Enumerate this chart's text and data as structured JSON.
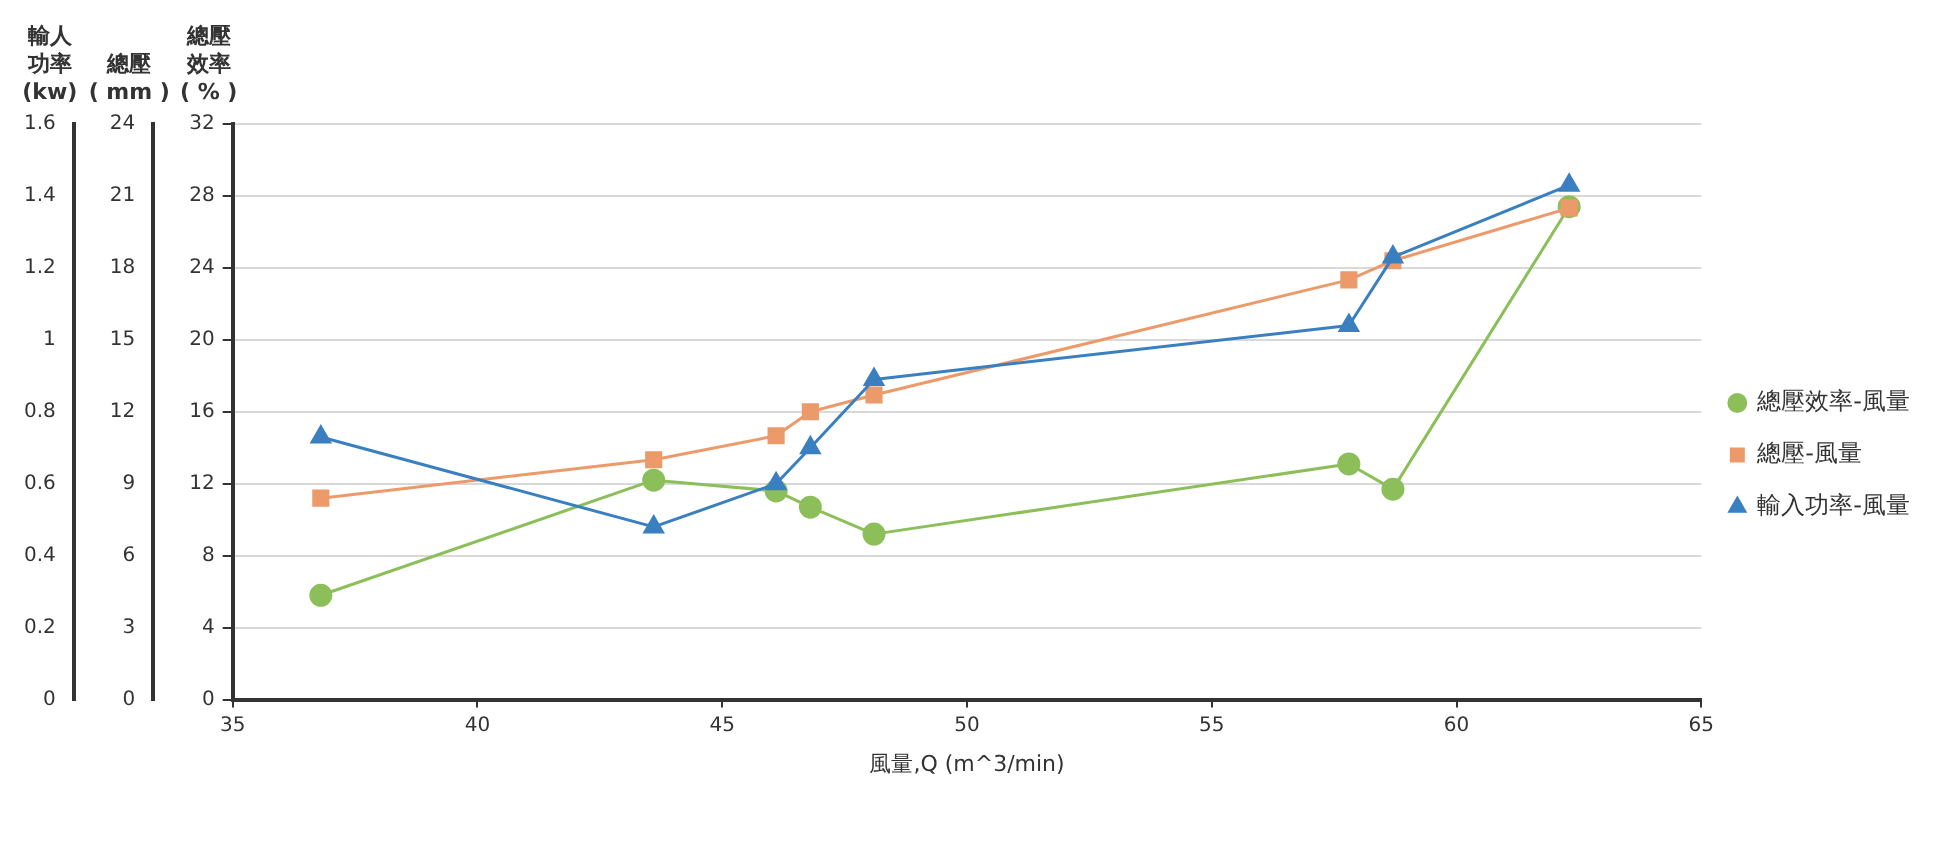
{
  "chart_data": {
    "type": "line",
    "xlabel": "風量,Q (m^3/min)",
    "ylabel": "總壓效率( % )",
    "y2label": "總壓( mm )",
    "y3label": "輸人功率(kw)",
    "xlim": [
      35,
      65
    ],
    "xticks": [
      35,
      40,
      45,
      50,
      55,
      60,
      65
    ],
    "ylim": [
      0,
      32
    ],
    "yticks": [
      0,
      4,
      8,
      12,
      16,
      20,
      24,
      28,
      32
    ],
    "y2lim": [
      0,
      24
    ],
    "y2ticks": [
      0,
      3,
      6,
      9,
      12,
      15,
      18,
      21,
      24
    ],
    "y3lim": [
      0,
      1.6
    ],
    "y3ticks": [
      0,
      0.2,
      0.4,
      0.6,
      0.8,
      1,
      1.2,
      1.4,
      1.6
    ],
    "grid": "y",
    "legend": "right",
    "line_style": "solid",
    "series": [
      {
        "name": "總壓效率-風量",
        "color": "#8cbf5a",
        "marker": "circle",
        "x": [
          36.8,
          43.6,
          46.1,
          46.8,
          48.1,
          57.8,
          58.7,
          62.3
        ],
        "values": [
          5.8,
          12.2,
          11.6,
          10.7,
          9.2,
          13.1,
          11.7,
          27.4
        ]
      },
      {
        "name": "總壓-風量",
        "color": "#ec9a6a",
        "marker": "square",
        "axis": "y2",
        "x": [
          36.8,
          43.6,
          46.1,
          46.8,
          48.1,
          57.8,
          58.7,
          62.3
        ],
        "values": [
          8.4,
          10,
          11,
          12,
          12.7,
          17.5,
          18.3,
          20.5
        ]
      },
      {
        "name": "輸入功率-風量",
        "color": "#3a7fc0",
        "marker": "triangle",
        "axis": "y3",
        "x": [
          36.8,
          43.6,
          46.1,
          46.8,
          48.1,
          57.8,
          58.7,
          62.3
        ],
        "values": [
          0.73,
          0.48,
          0.6,
          0.7,
          0.89,
          1.04,
          1.23,
          1.43
        ]
      }
    ]
  }
}
